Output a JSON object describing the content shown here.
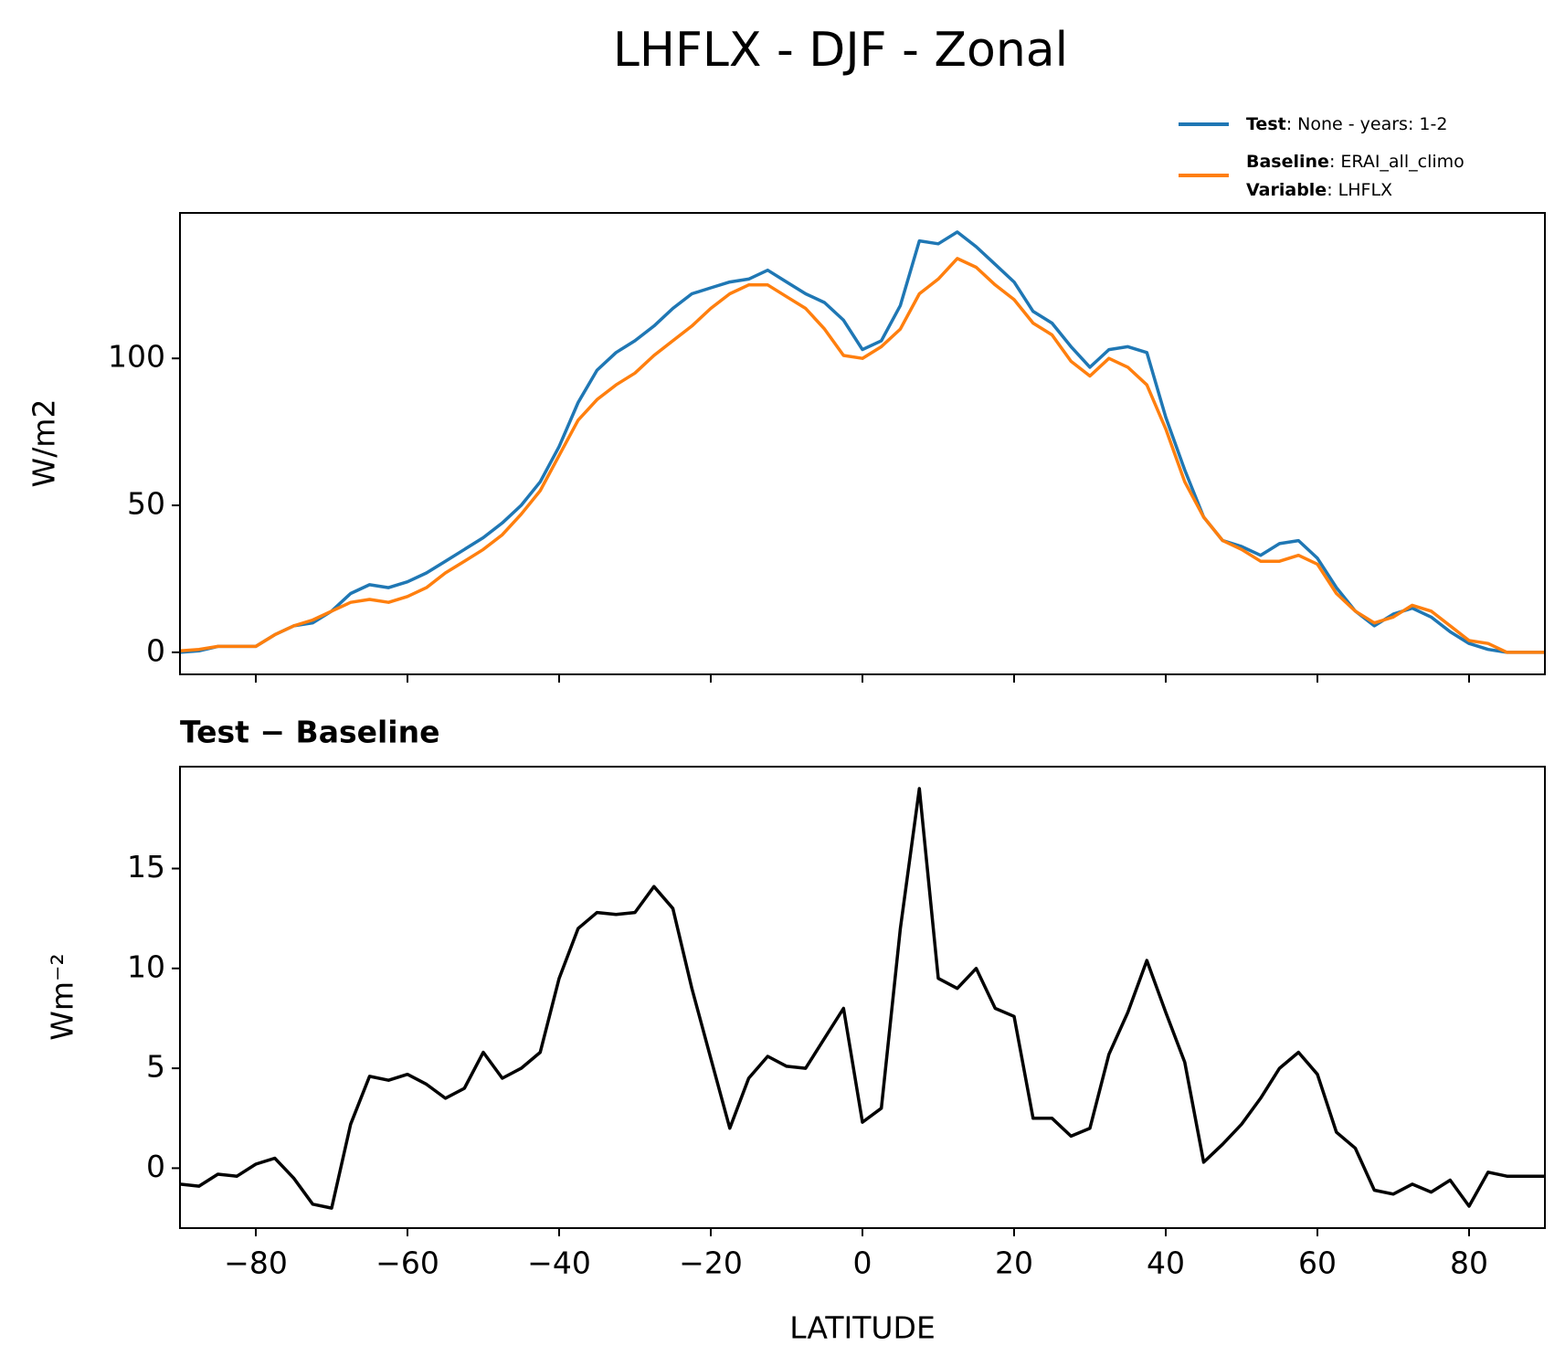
{
  "chart_data": [
    {
      "type": "line",
      "title": "LHFLX - DJF - Zonal",
      "ylabel": "W/m2",
      "x": [
        -90,
        -87.5,
        -85,
        -82.5,
        -80,
        -77.5,
        -75,
        -72.5,
        -70,
        -67.5,
        -65,
        -62.5,
        -60,
        -57.5,
        -55,
        -52.5,
        -50,
        -47.5,
        -45,
        -42.5,
        -40,
        -37.5,
        -35,
        -32.5,
        -30,
        -27.5,
        -25,
        -22.5,
        -20,
        -17.5,
        -15,
        -12.5,
        -10,
        -7.5,
        -5,
        -2.5,
        0,
        2.5,
        5,
        7.5,
        10,
        12.5,
        15,
        17.5,
        20,
        22.5,
        25,
        27.5,
        30,
        32.5,
        35,
        37.5,
        40,
        42.5,
        45,
        47.5,
        50,
        52.5,
        55,
        57.5,
        60,
        62.5,
        65,
        67.5,
        70,
        72.5,
        75,
        77.5,
        80,
        82.5,
        85,
        87.5,
        90
      ],
      "series": [
        {
          "name": "Test",
          "description": ": None - years: 1-2",
          "color": "#1f77b4",
          "values": [
            0,
            0.5,
            2,
            2,
            2,
            6,
            9,
            10,
            14,
            20,
            23,
            22,
            24,
            27,
            31,
            35,
            39,
            44,
            50,
            58,
            70,
            85,
            96,
            102,
            106,
            111,
            117,
            122,
            124,
            126,
            127,
            130,
            126,
            122,
            119,
            113,
            103,
            106,
            118,
            140,
            139,
            143,
            138,
            132,
            126,
            116,
            112,
            104,
            97,
            103,
            104,
            102,
            80,
            62,
            46,
            38,
            36,
            33,
            37,
            38,
            32,
            22,
            14,
            9,
            13,
            15,
            12,
            7,
            3,
            1,
            0,
            0,
            0
          ]
        },
        {
          "name": "Baseline",
          "description": ": ERAI_all_climo",
          "color": "#ff7f0e",
          "values": [
            0.5,
            1,
            2,
            2,
            2,
            6,
            9,
            11,
            14,
            17,
            18,
            17,
            19,
            22,
            27,
            31,
            35,
            40,
            47,
            55,
            67,
            79,
            86,
            91,
            95,
            101,
            106,
            111,
            117,
            122,
            125,
            125,
            121,
            117,
            110,
            101,
            100,
            104,
            110,
            122,
            127,
            134,
            131,
            125,
            120,
            112,
            108,
            99,
            94,
            100,
            97,
            91,
            76,
            58,
            46,
            38,
            35,
            31,
            31,
            33,
            30,
            20,
            14,
            10,
            12,
            16,
            14,
            9,
            4,
            3,
            0,
            0,
            0
          ]
        }
      ],
      "variable_name": "Variable",
      "variable": ": LHFLX",
      "xlim": [
        -90,
        90
      ],
      "xticks": [
        -80,
        -60,
        -40,
        -20,
        0,
        20,
        40,
        60,
        80
      ],
      "xtick_labels": false,
      "ylim": [
        -7.5,
        149.5
      ],
      "yticks": [
        0,
        50,
        100
      ]
    },
    {
      "type": "line",
      "title": "Test − Baseline",
      "ylabel": "Wm⁻²",
      "xlabel": "LATITUDE",
      "color": "#000000",
      "x": [
        -90,
        -87.5,
        -85,
        -82.5,
        -80,
        -77.5,
        -75,
        -72.5,
        -70,
        -67.5,
        -65,
        -62.5,
        -60,
        -57.5,
        -55,
        -52.5,
        -50,
        -47.5,
        -45,
        -42.5,
        -40,
        -37.5,
        -35,
        -32.5,
        -30,
        -27.5,
        -25,
        -22.5,
        -20,
        -17.5,
        -15,
        -12.5,
        -10,
        -7.5,
        -5,
        -2.5,
        0,
        2.5,
        5,
        7.5,
        10,
        12.5,
        15,
        17.5,
        20,
        22.5,
        25,
        27.5,
        30,
        32.5,
        35,
        37.5,
        40,
        42.5,
        45,
        47.5,
        50,
        52.5,
        55,
        57.5,
        60,
        62.5,
        65,
        67.5,
        70,
        72.5,
        75,
        77.5,
        80,
        82.5,
        85,
        87.5,
        90
      ],
      "values": [
        -0.8,
        -0.9,
        -0.3,
        -0.4,
        0.2,
        0.5,
        -0.5,
        -1.8,
        -2.0,
        2.2,
        4.6,
        4.4,
        4.7,
        4.2,
        3.5,
        4.0,
        5.8,
        4.5,
        5.0,
        5.8,
        9.5,
        12.0,
        12.8,
        12.7,
        12.8,
        14.1,
        13.0,
        9.0,
        5.5,
        2.0,
        4.5,
        5.6,
        5.1,
        5.0,
        6.5,
        8.0,
        2.3,
        3.0,
        12,
        19,
        9.5,
        9,
        10,
        8,
        7.6,
        2.5,
        2.5,
        1.6,
        2.0,
        5.7,
        7.8,
        10.4,
        7.8,
        5.3,
        0.3,
        1.2,
        2.2,
        3.5,
        5.0,
        5.8,
        4.7,
        1.8,
        1.0,
        -1.1,
        -1.3,
        -0.8,
        -1.2,
        -0.6,
        -1.9,
        -0.2,
        -0.4,
        -0.4,
        -0.4
      ],
      "xlim": [
        -90,
        90
      ],
      "xticks": [
        {
          "value": -80,
          "label": "−80"
        },
        {
          "value": -60,
          "label": "−60"
        },
        {
          "value": -40,
          "label": "−40"
        },
        {
          "value": -20,
          "label": "−20"
        },
        0,
        20,
        40,
        60,
        80
      ],
      "xtick_labels": true,
      "ylim": [
        -3,
        20.1
      ],
      "yticks": [
        0,
        5,
        10,
        15
      ]
    }
  ]
}
